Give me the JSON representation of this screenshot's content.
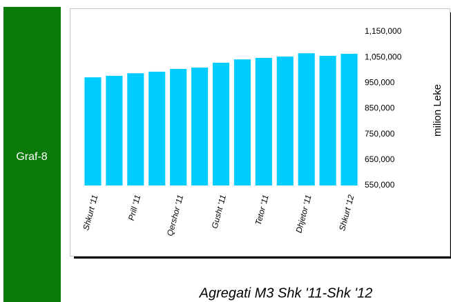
{
  "sidebar": {
    "label": "Graf-8"
  },
  "chart_data": {
    "type": "bar",
    "title": "Agregati M3 Shk '11-Shk '12",
    "y_label": "milion Leke",
    "categories": [
      "Shkurt '11",
      null,
      "Prill '11",
      null,
      "Qershor '11",
      null,
      "Gusht '11",
      null,
      "Tetor '11",
      null,
      "Dhjetor '11",
      null,
      "Shkurt '12"
    ],
    "values": [
      972000,
      978000,
      988000,
      994000,
      1005000,
      1010000,
      1029000,
      1042000,
      1048000,
      1053000,
      1066000,
      1056000,
      1064000
    ],
    "color": "#00ccff",
    "ylim": [
      550000,
      1150000
    ],
    "yticks": [
      {
        "value": 550000,
        "label": "550,000"
      },
      {
        "value": 650000,
        "label": "650,000"
      },
      {
        "value": 750000,
        "label": "750,000"
      },
      {
        "value": 850000,
        "label": "850,000"
      },
      {
        "value": 950000,
        "label": "950,000"
      },
      {
        "value": 1050000,
        "label": "1,050,000"
      },
      {
        "value": 1150000,
        "label": "1,150,000"
      }
    ],
    "grid": false
  }
}
